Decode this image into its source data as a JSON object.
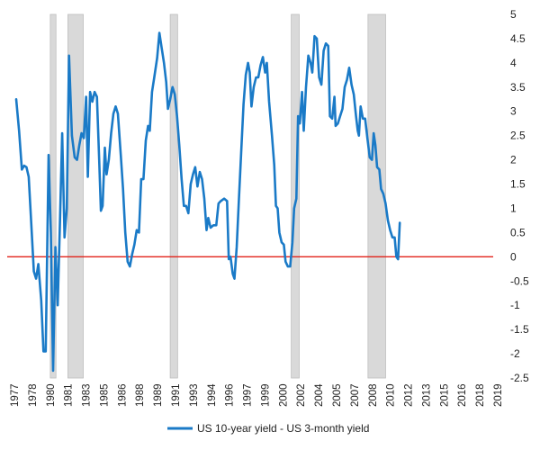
{
  "chart_data": {
    "type": "line",
    "title": "",
    "xlabel": "",
    "ylabel": "",
    "ylim": [
      -2.5,
      5
    ],
    "y_ticks": [
      "5",
      "4.5",
      "4",
      "3.5",
      "3",
      "2.5",
      "2",
      "1.5",
      "1",
      "0.5",
      "0",
      "-0.5",
      "-1",
      "-1.5",
      "-2",
      "-2.5"
    ],
    "x_tick_labels": [
      "1977",
      "1978",
      "1980",
      "1981",
      "1983",
      "1985",
      "1986",
      "1988",
      "1989",
      "1991",
      "1993",
      "1994",
      "1996",
      "1997",
      "1999",
      "2000",
      "2002",
      "2004",
      "2005",
      "2007",
      "2008",
      "2010",
      "2012",
      "2013",
      "2015",
      "2016",
      "2018",
      "2019"
    ],
    "x_range": [
      1977.0,
      2019.6
    ],
    "grid": false,
    "legend_position": "bottom",
    "recessions": [
      {
        "start": 1980.0,
        "end": 1980.5
      },
      {
        "start": 1981.55,
        "end": 1982.9
      },
      {
        "start": 1990.55,
        "end": 1991.2
      },
      {
        "start": 2001.2,
        "end": 2001.9
      },
      {
        "start": 2007.95,
        "end": 2009.5
      }
    ],
    "reference_line": {
      "y": 0,
      "color": "#e2231a"
    },
    "series": [
      {
        "name": "US 10-year yield - US 3-month yield",
        "color": "#1a7ac7",
        "points": [
          [
            1977.0,
            3.25
          ],
          [
            1977.25,
            2.6
          ],
          [
            1977.5,
            1.8
          ],
          [
            1977.7,
            1.88
          ],
          [
            1977.9,
            1.85
          ],
          [
            1978.1,
            1.65
          ],
          [
            1978.3,
            0.8
          ],
          [
            1978.55,
            -0.3
          ],
          [
            1978.75,
            -0.45
          ],
          [
            1978.95,
            -0.15
          ],
          [
            1979.2,
            -0.9
          ],
          [
            1979.4,
            -1.95
          ],
          [
            1979.6,
            -1.95
          ],
          [
            1979.85,
            2.1
          ],
          [
            1980.05,
            0.5
          ],
          [
            1980.25,
            -2.35
          ],
          [
            1980.45,
            0.2
          ],
          [
            1980.65,
            -1.0
          ],
          [
            1980.85,
            0.7
          ],
          [
            1981.05,
            2.55
          ],
          [
            1981.25,
            0.4
          ],
          [
            1981.45,
            1.0
          ],
          [
            1981.65,
            4.15
          ],
          [
            1981.9,
            2.5
          ],
          [
            1982.15,
            2.05
          ],
          [
            1982.35,
            2.0
          ],
          [
            1982.55,
            2.3
          ],
          [
            1982.75,
            2.55
          ],
          [
            1982.95,
            2.45
          ],
          [
            1983.15,
            3.3
          ],
          [
            1983.3,
            1.65
          ],
          [
            1983.5,
            3.4
          ],
          [
            1983.7,
            3.2
          ],
          [
            1983.9,
            3.4
          ],
          [
            1984.1,
            3.3
          ],
          [
            1984.3,
            2.0
          ],
          [
            1984.45,
            0.95
          ],
          [
            1984.6,
            1.05
          ],
          [
            1984.8,
            2.25
          ],
          [
            1984.95,
            1.7
          ],
          [
            1985.15,
            2.0
          ],
          [
            1985.35,
            2.55
          ],
          [
            1985.55,
            2.95
          ],
          [
            1985.75,
            3.1
          ],
          [
            1985.95,
            2.95
          ],
          [
            1986.2,
            2.1
          ],
          [
            1986.4,
            1.4
          ],
          [
            1986.6,
            0.5
          ],
          [
            1986.8,
            -0.1
          ],
          [
            1987.0,
            -0.2
          ],
          [
            1987.2,
            0.05
          ],
          [
            1987.4,
            0.25
          ],
          [
            1987.6,
            0.55
          ],
          [
            1987.8,
            0.5
          ],
          [
            1988.0,
            1.6
          ],
          [
            1988.2,
            1.6
          ],
          [
            1988.4,
            2.4
          ],
          [
            1988.6,
            2.7
          ],
          [
            1988.75,
            2.6
          ],
          [
            1988.95,
            3.4
          ],
          [
            1989.15,
            3.7
          ],
          [
            1989.4,
            4.1
          ],
          [
            1989.6,
            4.62
          ],
          [
            1989.8,
            4.3
          ],
          [
            1990.0,
            4.0
          ],
          [
            1990.2,
            3.6
          ],
          [
            1990.35,
            3.05
          ],
          [
            1990.55,
            3.25
          ],
          [
            1990.75,
            3.5
          ],
          [
            1990.95,
            3.35
          ],
          [
            1991.15,
            2.9
          ],
          [
            1991.35,
            2.3
          ],
          [
            1991.55,
            1.6
          ],
          [
            1991.75,
            1.05
          ],
          [
            1991.95,
            1.05
          ],
          [
            1992.15,
            0.9
          ],
          [
            1992.35,
            1.5
          ],
          [
            1992.55,
            1.7
          ],
          [
            1992.75,
            1.85
          ],
          [
            1992.95,
            1.45
          ],
          [
            1993.15,
            1.75
          ],
          [
            1993.35,
            1.6
          ],
          [
            1993.55,
            1.2
          ],
          [
            1993.75,
            0.55
          ],
          [
            1993.9,
            0.8
          ],
          [
            1994.1,
            0.6
          ],
          [
            1994.35,
            0.65
          ],
          [
            1994.6,
            0.65
          ],
          [
            1994.8,
            1.1
          ],
          [
            1995.0,
            1.15
          ],
          [
            1995.3,
            1.2
          ],
          [
            1995.55,
            1.15
          ],
          [
            1995.7,
            -0.05
          ],
          [
            1995.85,
            0.0
          ],
          [
            1996.05,
            -0.35
          ],
          [
            1996.2,
            -0.45
          ],
          [
            1996.4,
            0.2
          ],
          [
            1996.6,
            1.2
          ],
          [
            1996.8,
            2.2
          ],
          [
            1997.0,
            3.15
          ],
          [
            1997.2,
            3.75
          ],
          [
            1997.4,
            4.0
          ],
          [
            1997.55,
            3.8
          ],
          [
            1997.7,
            3.1
          ],
          [
            1997.9,
            3.5
          ],
          [
            1998.1,
            3.7
          ],
          [
            1998.3,
            3.7
          ],
          [
            1998.5,
            3.95
          ],
          [
            1998.7,
            4.12
          ],
          [
            1998.9,
            3.8
          ],
          [
            1999.05,
            4.0
          ],
          [
            1999.25,
            3.2
          ],
          [
            1999.5,
            2.5
          ],
          [
            1999.7,
            1.9
          ],
          [
            1999.85,
            1.05
          ],
          [
            2000.0,
            1.0
          ],
          [
            2000.15,
            0.5
          ],
          [
            2000.35,
            0.3
          ],
          [
            2000.55,
            0.25
          ],
          [
            2000.7,
            -0.1
          ],
          [
            2000.9,
            -0.2
          ],
          [
            2001.1,
            -0.2
          ],
          [
            2001.3,
            0.3
          ],
          [
            2001.45,
            1.0
          ],
          [
            2001.65,
            1.2
          ],
          [
            2001.8,
            2.9
          ],
          [
            2001.95,
            2.75
          ],
          [
            2002.15,
            3.4
          ],
          [
            2002.3,
            2.6
          ],
          [
            2002.5,
            3.5
          ],
          [
            2002.7,
            4.15
          ],
          [
            2002.9,
            4.0
          ],
          [
            2003.05,
            3.8
          ],
          [
            2003.25,
            4.55
          ],
          [
            2003.45,
            4.5
          ],
          [
            2003.65,
            3.7
          ],
          [
            2003.85,
            3.55
          ],
          [
            2004.05,
            4.25
          ],
          [
            2004.25,
            4.4
          ],
          [
            2004.45,
            4.35
          ],
          [
            2004.6,
            2.9
          ],
          [
            2004.8,
            2.85
          ],
          [
            2005.0,
            3.3
          ],
          [
            2005.1,
            2.7
          ],
          [
            2005.3,
            2.75
          ],
          [
            2005.5,
            2.9
          ],
          [
            2005.7,
            3.05
          ],
          [
            2005.9,
            3.5
          ],
          [
            2006.1,
            3.65
          ],
          [
            2006.3,
            3.9
          ],
          [
            2006.5,
            3.55
          ],
          [
            2006.7,
            3.35
          ],
          [
            2006.9,
            2.9
          ],
          [
            2007.05,
            2.6
          ],
          [
            2007.15,
            2.5
          ],
          [
            2007.3,
            3.1
          ],
          [
            2007.5,
            2.85
          ],
          [
            2007.7,
            2.85
          ],
          [
            2007.9,
            2.45
          ],
          [
            2008.1,
            2.05
          ],
          [
            2008.3,
            2.0
          ],
          [
            2008.45,
            2.55
          ],
          [
            2008.6,
            2.3
          ],
          [
            2008.75,
            1.85
          ],
          [
            2008.95,
            1.8
          ],
          [
            2009.1,
            1.4
          ],
          [
            2009.3,
            1.3
          ],
          [
            2009.5,
            1.1
          ],
          [
            2009.7,
            0.75
          ],
          [
            2009.9,
            0.55
          ],
          [
            2010.1,
            0.4
          ],
          [
            2010.3,
            0.4
          ],
          [
            2010.45,
            0.0
          ],
          [
            2010.6,
            -0.05
          ],
          [
            2010.75,
            0.7
          ]
        ]
      }
    ]
  }
}
